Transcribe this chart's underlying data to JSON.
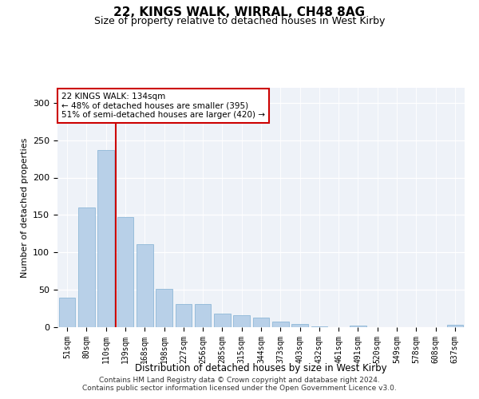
{
  "title1": "22, KINGS WALK, WIRRAL, CH48 8AG",
  "title2": "Size of property relative to detached houses in West Kirby",
  "xlabel": "Distribution of detached houses by size in West Kirby",
  "ylabel": "Number of detached properties",
  "categories": [
    "51sqm",
    "80sqm",
    "110sqm",
    "139sqm",
    "168sqm",
    "198sqm",
    "227sqm",
    "256sqm",
    "285sqm",
    "315sqm",
    "344sqm",
    "373sqm",
    "403sqm",
    "432sqm",
    "461sqm",
    "491sqm",
    "520sqm",
    "549sqm",
    "578sqm",
    "608sqm",
    "637sqm"
  ],
  "values": [
    40,
    160,
    237,
    147,
    111,
    51,
    31,
    31,
    18,
    16,
    13,
    7,
    4,
    1,
    0,
    2,
    0,
    0,
    0,
    0,
    3
  ],
  "bar_color": "#b8d0e8",
  "bar_edge_color": "#8fb8d8",
  "vline_x": 2.5,
  "vline_color": "#cc0000",
  "annotation_text": "22 KINGS WALK: 134sqm\n← 48% of detached houses are smaller (395)\n51% of semi-detached houses are larger (420) →",
  "annotation_box_color": "#ffffff",
  "annotation_box_edge": "#cc0000",
  "footer1": "Contains HM Land Registry data © Crown copyright and database right 2024.",
  "footer2": "Contains public sector information licensed under the Open Government Licence v3.0.",
  "ylim": [
    0,
    320
  ],
  "yticks": [
    0,
    50,
    100,
    150,
    200,
    250,
    300
  ],
  "bg_color": "#ffffff",
  "plot_bg_color": "#eef2f8"
}
